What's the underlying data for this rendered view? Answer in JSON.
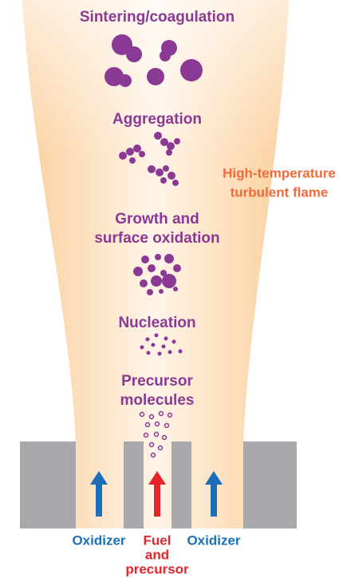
{
  "stages": [
    {
      "lines": [
        "Sintering/coagulation"
      ]
    },
    {
      "lines": [
        "Aggregation"
      ]
    },
    {
      "lines": [
        "Growth and",
        "surface oxidation"
      ]
    },
    {
      "lines": [
        "Nucleation"
      ]
    },
    {
      "lines": [
        "Precursor",
        "molecules"
      ]
    }
  ],
  "flame_label": [
    "High-temperature",
    "turbulent flame"
  ],
  "inputs": [
    {
      "lines": [
        "Oxidizer"
      ]
    },
    {
      "lines": [
        "Fuel",
        "and",
        "precursor"
      ]
    },
    {
      "lines": [
        "Oxidizer"
      ]
    }
  ]
}
